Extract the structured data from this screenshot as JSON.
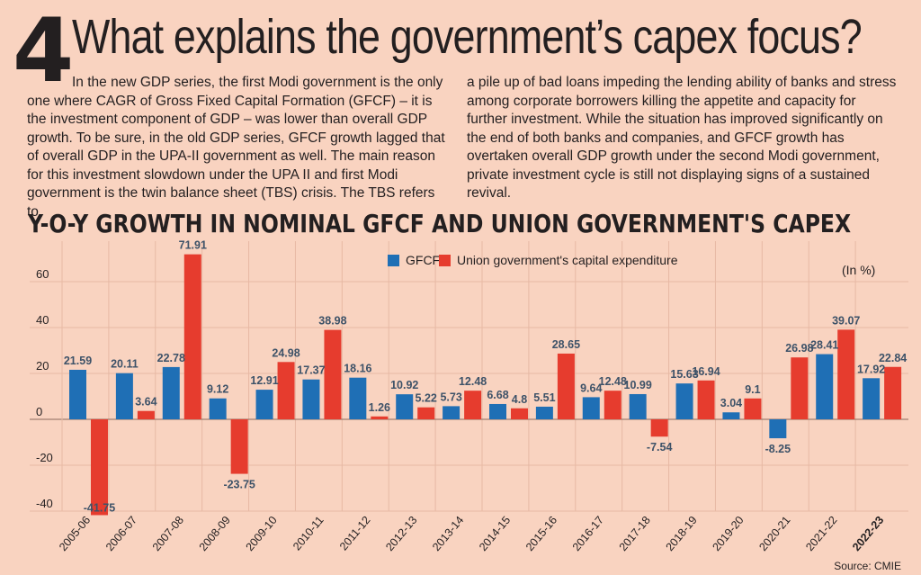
{
  "page": {
    "number": "4",
    "title": "What explains the government’s capex focus?",
    "body_left": "In the new GDP series, the first Modi government is the only one where CAGR of Gross Fixed Capital Formation (GFCF) – it is the investment component of GDP – was lower than overall GDP growth. To be sure, in the old GDP series, GFCF growth lagged that of overall GDP in the UPA-II government as well. The main reason for this investment slowdown under the UPA II and first Modi government is the twin balance sheet (TBS) crisis. The TBS refers to",
    "body_right": "a pile up of bad loans impeding the lending ability of banks and stress among corporate borrowers killing the appetite and capacity for further investment. While the situation has improved significantly on the end of both banks and companies, and GFCF growth has overtaken overall GDP growth under the second Modi government, private investment cycle is still not displaying signs of a sustained revival.",
    "source": "Source: CMIE"
  },
  "colors": {
    "gfcf": "#1f6fb5",
    "capex": "#e63c2e",
    "label": "#3d5268",
    "grid": "#e7b9a4"
  },
  "chart_data": {
    "type": "bar",
    "title": "Y-O-Y GROWTH IN NOMINAL GFCF AND UNION GOVERNMENT'S CAPEX",
    "unit_note": "(In %)",
    "xlabel": "",
    "ylabel": "",
    "ylim": [
      -45,
      75
    ],
    "yticks": [
      60,
      40,
      20,
      0,
      -20,
      -40
    ],
    "ytick_labels": [
      "60",
      "40",
      "20",
      "0",
      "-20",
      "-40"
    ],
    "legend_position": "top-center",
    "categories": [
      "2005-06",
      "2006-07",
      "2007-08",
      "2008-09",
      "2009-10",
      "2010-11",
      "2011-12",
      "2012-13",
      "2013-14",
      "2014-15",
      "2015-16",
      "2016-17",
      "2017-18",
      "2018-19",
      "2019-20",
      "2020-21",
      "2021-22",
      "2022-23"
    ],
    "series": [
      {
        "name": "GFCF",
        "values": [
          21.59,
          20.11,
          22.78,
          9.12,
          12.91,
          17.37,
          18.16,
          10.92,
          5.73,
          6.68,
          5.51,
          9.64,
          10.99,
          15.63,
          3.04,
          -8.25,
          28.41,
          17.92
        ],
        "labels": [
          "21.59",
          "20.11",
          "22.78",
          "9.12",
          "12.91",
          "17.37",
          "18.16",
          "10.92",
          "5.73",
          "6.68",
          "5.51",
          "9.64",
          "10.99",
          "15.63",
          "3.04",
          "-8.25",
          "28.41",
          "17.92"
        ]
      },
      {
        "name": "Union government's capital expenditure",
        "values": [
          -41.75,
          3.64,
          71.91,
          -23.75,
          24.98,
          38.98,
          1.26,
          5.22,
          12.48,
          4.8,
          28.65,
          12.48,
          -7.54,
          16.94,
          9.1,
          26.98,
          39.07,
          22.84
        ],
        "labels": [
          "-41.75",
          "3.64",
          "71.91",
          "-23.75",
          "24.98",
          "38.98",
          "1.26",
          "5.22",
          "12.48",
          "4.8",
          "28.65",
          "12.48",
          "-7.54",
          "16.94",
          "9.1",
          "26.98",
          "39.07",
          "22.84"
        ]
      }
    ]
  }
}
